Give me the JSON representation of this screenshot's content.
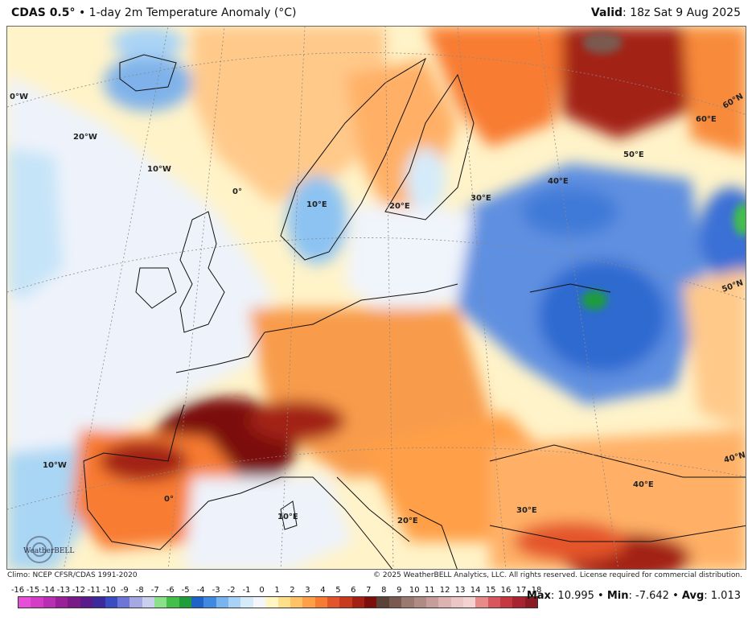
{
  "header": {
    "model": "CDAS 0.5°",
    "separator": " • ",
    "product": "1-day 2m Temperature Anomaly (°C)",
    "valid_label": "Valid",
    "valid_time": ": 18z Sat 9 Aug 2025"
  },
  "map": {
    "grid_labels": [
      {
        "text": "0°W"
      },
      {
        "text": "20°W"
      },
      {
        "text": "10°W"
      },
      {
        "text": "0°"
      },
      {
        "text": "10°E"
      },
      {
        "text": "20°E"
      },
      {
        "text": "30°E"
      },
      {
        "text": "40°E"
      },
      {
        "text": "50°E"
      },
      {
        "text": "60°E"
      },
      {
        "text": "60°N"
      },
      {
        "text": "50°N"
      },
      {
        "text": "40°N"
      },
      {
        "text": "40°E"
      },
      {
        "text": "30°E"
      },
      {
        "text": "20°E"
      },
      {
        "text": "10°E"
      },
      {
        "text": "0°"
      },
      {
        "text": "10°W"
      }
    ],
    "logo_text": "WeatherBELL"
  },
  "footer": {
    "climo": "Climo: NCEP CFSR/CDAS 1991-2020",
    "copyright": "© 2025 WeatherBELL Analytics, LLC. All rights reserved. License required for commercial distribution."
  },
  "colorbar": {
    "ticks": [
      "-16",
      "-15",
      "-14",
      "-13",
      "-12",
      "-11",
      "-10",
      "-9",
      "-8",
      "-7",
      "-6",
      "-5",
      "-4",
      "-3",
      "-2",
      "-1",
      "0",
      "1",
      "2",
      "3",
      "4",
      "5",
      "6",
      "7",
      "8",
      "9",
      "10",
      "11",
      "12",
      "13",
      "14",
      "15",
      "16",
      "17",
      "18"
    ],
    "colors": [
      "#e64fd8",
      "#d23cc7",
      "#b92fb4",
      "#9a2099",
      "#7a1a86",
      "#5a1a8a",
      "#3b2a9c",
      "#3a4cc2",
      "#6d76d6",
      "#a6a8e4",
      "#c8d0ee",
      "#8be08a",
      "#43c04a",
      "#1e9d3a",
      "#1f63c8",
      "#3f8ae0",
      "#77b4f0",
      "#a9d3f6",
      "#d5ebfa",
      "#f3f6fb",
      "#fff6c4",
      "#ffe08a",
      "#ffc266",
      "#ff9f47",
      "#f87b33",
      "#e4542a",
      "#c83a1e",
      "#a32113",
      "#7c0f0b",
      "#5a4238",
      "#7a5a50",
      "#9a7a70",
      "#b08a84",
      "#c79d9a",
      "#dcb3b0",
      "#ecc6c4",
      "#f3d3d1",
      "#e68a8a",
      "#d8565e",
      "#c63840",
      "#a82430",
      "#8a1a24"
    ]
  },
  "stats": {
    "max_label": "Max",
    "max_value": ": 10.995",
    "min_label": "Min",
    "min_value": ": -7.642",
    "avg_label": "Avg",
    "avg_value": ": 1.013",
    "sep": " • "
  }
}
